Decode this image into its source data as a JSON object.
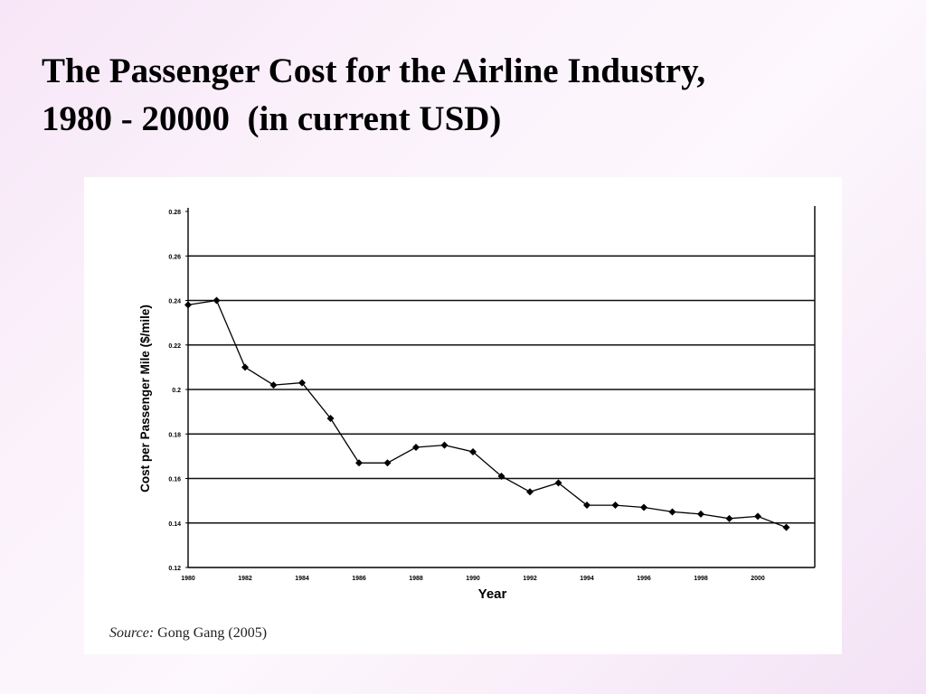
{
  "slide": {
    "title_line1": "The Passenger Cost for the Airline Industry,",
    "title_line2": "1980 - 20000  (in current USD)"
  },
  "source": {
    "label": "Source:",
    "text": "Gong Gang (2005)"
  },
  "chart_data": {
    "type": "line",
    "title": "",
    "xlabel": "Year",
    "ylabel": "Cost per Passenger Mile ($/mile)",
    "ylim": [
      0.12,
      0.28
    ],
    "xlim": [
      1980,
      2002
    ],
    "y_ticks": [
      0.28,
      0.26,
      0.24,
      0.22,
      0.2,
      0.18,
      0.16,
      0.14,
      0.12
    ],
    "y_tick_labels": [
      "0.28",
      "0.26",
      "0.24",
      "0.22",
      "0.2",
      "0.18",
      "0.16",
      "0.14",
      "0.12"
    ],
    "x_ticks": [
      1980,
      1982,
      1984,
      1986,
      1988,
      1990,
      1992,
      1994,
      1996,
      1998,
      2000
    ],
    "x_tick_labels": [
      "1980",
      "1982",
      "1984",
      "1986",
      "1988",
      "1990",
      "1992",
      "1994",
      "1996",
      "1998",
      "2000"
    ],
    "grid": "horizontal",
    "legend": "none",
    "marker": "diamond",
    "line_color": "#000000",
    "series": [
      {
        "x": [
          1980,
          1981,
          1982,
          1983,
          1984,
          1985,
          1986,
          1987,
          1988,
          1989,
          1990,
          1991,
          1992,
          1993,
          1994,
          1995,
          1996,
          1997,
          1998,
          1999,
          2000,
          2001
        ],
        "values": [
          0.238,
          0.24,
          0.21,
          0.202,
          0.203,
          0.187,
          0.167,
          0.167,
          0.174,
          0.175,
          0.172,
          0.161,
          0.154,
          0.158,
          0.148,
          0.148,
          0.147,
          0.145,
          0.144,
          0.142,
          0.143,
          0.138
        ]
      }
    ]
  }
}
